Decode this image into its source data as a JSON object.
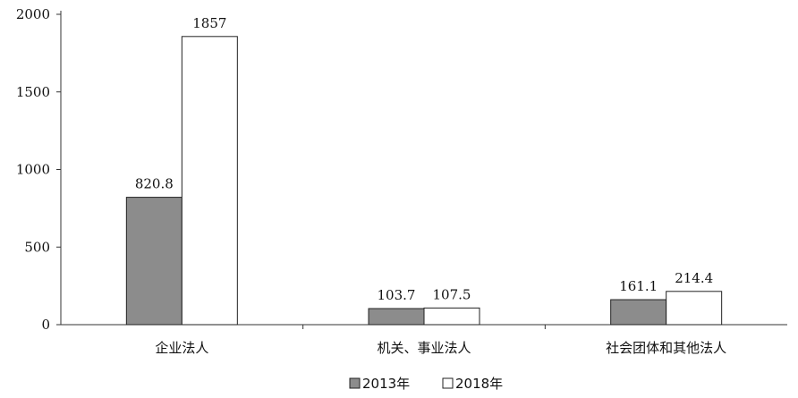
{
  "chart_data": {
    "type": "bar",
    "categories": [
      "企业法人",
      "机关、事业法人",
      "社会团体和其他法人"
    ],
    "series": [
      {
        "name": "2013年",
        "values": [
          820.8,
          103.7,
          161.1
        ],
        "color": "#8c8c8c"
      },
      {
        "name": "2018年",
        "values": [
          1857,
          107.5,
          214.4
        ],
        "color": "#ffffff"
      }
    ],
    "data_labels": [
      [
        "820.8",
        "103.7",
        "161.1"
      ],
      [
        "1857",
        "107.5",
        "214.4"
      ]
    ],
    "yticks": [
      0,
      500,
      1000,
      1500,
      2000
    ],
    "ylim": [
      0,
      2000
    ],
    "grid": false,
    "legend_position": "bottom-center"
  }
}
